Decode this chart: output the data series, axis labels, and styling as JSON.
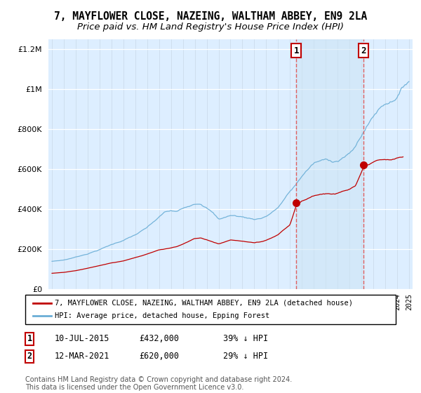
{
  "title1": "7, MAYFLOWER CLOSE, NAZEING, WALTHAM ABBEY, EN9 2LA",
  "title2": "Price paid vs. HM Land Registry's House Price Index (HPI)",
  "legend_line1": "7, MAYFLOWER CLOSE, NAZEING, WALTHAM ABBEY, EN9 2LA (detached house)",
  "legend_line2": "HPI: Average price, detached house, Epping Forest",
  "sale1_date": "10-JUL-2015",
  "sale1_price": "£432,000",
  "sale1_hpi": "39% ↓ HPI",
  "sale2_date": "12-MAR-2021",
  "sale2_price": "£620,000",
  "sale2_hpi": "29% ↓ HPI",
  "footnote": "Contains HM Land Registry data © Crown copyright and database right 2024.\nThis data is licensed under the Open Government Licence v3.0.",
  "hpi_color": "#6aaed6",
  "price_color": "#c00000",
  "sale_marker_color": "#c00000",
  "vline_color": "#e06060",
  "bg_color": "#ddeeff",
  "shade_color": "#cce4f5",
  "ylim": [
    0,
    1250000
  ],
  "xlim_start": 1994.7,
  "xlim_end": 2025.3,
  "sale1_year": 2015.53,
  "sale2_year": 2021.19,
  "sale1_value": 432000,
  "sale2_value": 620000,
  "title_fontsize": 10.5,
  "subtitle_fontsize": 9.5
}
